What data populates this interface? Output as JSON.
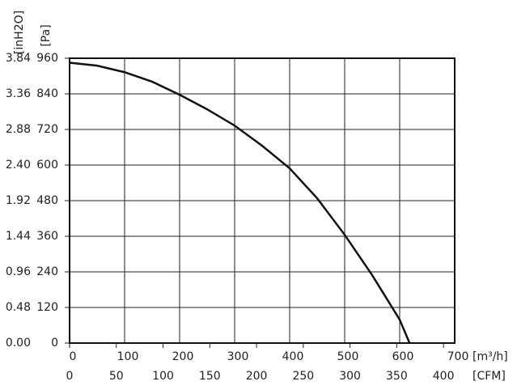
{
  "chart_data": {
    "type": "line",
    "x_label": "[m³/h]",
    "x2_label": "[CFM]",
    "y_label": "[Pa]",
    "y2_label": "[inH2O]",
    "x": [
      0,
      50,
      100,
      150,
      200,
      250,
      300,
      350,
      400,
      450,
      500,
      550,
      600,
      618
    ],
    "series": [
      {
        "color": "#111111",
        "values": [
          945,
          935,
          913,
          881,
          837,
          788,
          733,
          665,
          589,
          488,
          365,
          229,
          79,
          0
        ]
      }
    ],
    "xlim": [
      0,
      700
    ],
    "xticks": [
      0,
      100,
      200,
      300,
      400,
      500,
      600,
      700
    ],
    "x2lim": [
      0,
      412
    ],
    "x2ticks": [
      0,
      50,
      100,
      150,
      200,
      250,
      300,
      350,
      400
    ],
    "ylim": [
      0,
      960
    ],
    "yticks": [
      0,
      120,
      240,
      360,
      480,
      600,
      720,
      840,
      960
    ],
    "y2lim": [
      0,
      3.84
    ],
    "y2ticks": [
      {
        "value": 0,
        "label": "0.00"
      },
      0.48,
      0.96,
      1.44,
      1.92,
      {
        "value": 2.4,
        "label": "2.40"
      },
      2.88,
      3.36,
      3.84
    ],
    "grid": true
  }
}
